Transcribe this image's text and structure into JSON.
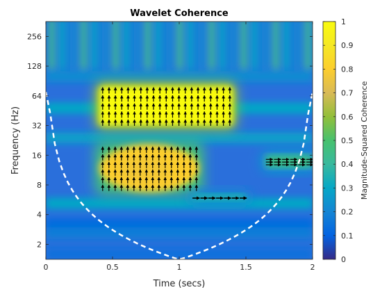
{
  "chart_data": {
    "type": "heatmap",
    "title": "Wavelet Coherence",
    "xlabel": "Time (secs)",
    "ylabel": "Frequency (Hz)",
    "xlim": [
      0,
      2
    ],
    "ylim": [
      1.41,
      362
    ],
    "yscale": "log2",
    "xticks": [
      0,
      0.5,
      1,
      1.5,
      2
    ],
    "xtick_labels": [
      "0",
      "0.5",
      "1",
      "1.5",
      "2"
    ],
    "yticks": [
      2,
      4,
      8,
      16,
      32,
      64,
      128,
      256
    ],
    "ytick_labels": [
      "2",
      "4",
      "8",
      "16",
      "32",
      "64",
      "128",
      "256"
    ],
    "colorbar": {
      "label": "Magnitude-Squared Coherence",
      "range": [
        0,
        1
      ],
      "ticks": [
        0,
        0.1,
        0.2,
        0.3,
        0.4,
        0.5,
        0.6,
        0.7,
        0.8,
        0.9,
        1
      ],
      "tick_labels": [
        "0",
        "0.1",
        "0.2",
        "0.3",
        "0.4",
        "0.5",
        "0.6",
        "0.7",
        "0.8",
        "0.9",
        "1"
      ],
      "colormap": "parula"
    },
    "regions": [
      {
        "name": "high-frequency block",
        "t": [
          0.4,
          1.4
        ],
        "f": [
          32,
          80
        ],
        "coherence": 1.0,
        "phase_arrows": "up"
      },
      {
        "name": "low-frequency block",
        "t": [
          0.4,
          1.15
        ],
        "f": [
          7,
          20
        ],
        "coherence": 0.8,
        "phase_arrows": "up"
      },
      {
        "name": "band near 6 Hz",
        "t": [
          1.1,
          1.5
        ],
        "f": [
          5.5,
          6.5
        ],
        "coherence": 0.35,
        "phase_arrows": "right"
      },
      {
        "name": "band near 14 Hz",
        "t": [
          1.65,
          2.0
        ],
        "f": [
          12,
          16
        ],
        "coherence": 0.45,
        "phase_arrows": "right"
      }
    ],
    "cone_of_influence": {
      "style": "white dashed",
      "t_min_frequency": 1.0,
      "f_min": 1.41
    },
    "grid": false,
    "legend": "none"
  }
}
